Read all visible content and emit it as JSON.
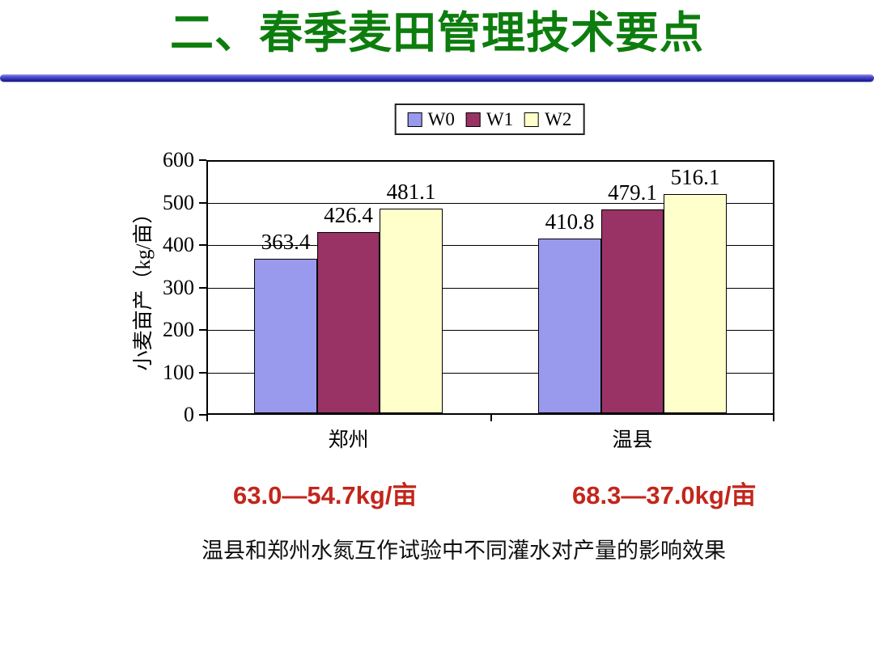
{
  "slide": {
    "title": "二、春季麦田管理技术要点",
    "caption": "温县和郑州水氮互作试验中不同灌水对产量的影响效果",
    "annotations": [
      {
        "text": "63.0—54.7kg/亩"
      },
      {
        "text": "68.3—37.0kg/亩"
      }
    ]
  },
  "colors": {
    "title_green": "#0D7D0D",
    "divider_blue": "#3A3ABE",
    "annotation_red": "#C3251B",
    "axis_line": "#000000",
    "chart_background": "#FFFFFF"
  },
  "chart_data": {
    "type": "bar",
    "title": "",
    "xlabel": "",
    "ylabel": "小麦亩产（kg/亩）",
    "categories": [
      "郑州",
      "温县"
    ],
    "series": [
      {
        "name": "W0",
        "color": "#9999EE",
        "values": [
          363.4,
          410.8
        ]
      },
      {
        "name": "W1",
        "color": "#993366",
        "values": [
          426.4,
          479.1
        ]
      },
      {
        "name": "W2",
        "color": "#FFFFCC",
        "values": [
          481.1,
          516.1
        ]
      }
    ],
    "ylim": [
      0,
      600
    ],
    "ytick_step": 100,
    "grid": true,
    "legend_position": "top-center",
    "value_labels": true
  }
}
